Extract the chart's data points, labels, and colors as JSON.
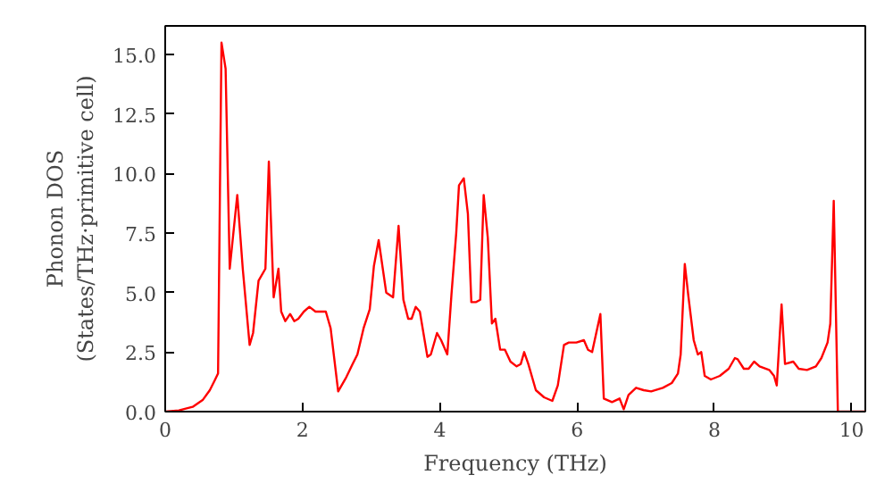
{
  "chart_data": {
    "type": "line",
    "xlabel": "Frequency (THz)",
    "ylabel": "Phonon DOS\n(States/THz·primitive cell)",
    "xlim": [
      0,
      10.2
    ],
    "ylim": [
      0,
      16.2
    ],
    "xticks": [
      0,
      2,
      4,
      6,
      8,
      10
    ],
    "yticks": [
      {
        "value": 0,
        "label": "0.0"
      },
      {
        "value": 2.5,
        "label": "2.5"
      },
      {
        "value": 5,
        "label": "5.0"
      },
      {
        "value": 7.5,
        "label": "7.5"
      },
      {
        "value": 10,
        "label": "10.0"
      },
      {
        "value": 12.5,
        "label": "12.5"
      },
      {
        "value": 15,
        "label": "15.0"
      }
    ],
    "grid": false,
    "line_style": "solid",
    "series": [
      {
        "color": "#ff0000",
        "x": [
          0,
          0.2,
          0.4,
          0.55,
          0.65,
          0.72,
          0.77,
          0.82,
          0.88,
          0.94,
          1.05,
          1.13,
          1.23,
          1.28,
          1.36,
          1.46,
          1.51,
          1.58,
          1.65,
          1.69,
          1.75,
          1.82,
          1.88,
          1.94,
          2.02,
          2.1,
          2.19,
          2.34,
          2.41,
          2.52,
          2.63,
          2.73,
          2.8,
          2.89,
          2.98,
          3.04,
          3.11,
          3.22,
          3.32,
          3.4,
          3.47,
          3.54,
          3.59,
          3.65,
          3.71,
          3.82,
          3.87,
          3.96,
          4.02,
          4.11,
          4.17,
          4.24,
          4.28,
          4.35,
          4.41,
          4.46,
          4.53,
          4.59,
          4.64,
          4.7,
          4.76,
          4.81,
          4.88,
          4.95,
          5.03,
          5.12,
          5.18,
          5.23,
          5.29,
          5.4,
          5.52,
          5.64,
          5.72,
          5.81,
          5.88,
          5.99,
          6.1,
          6.16,
          6.22,
          6.34,
          6.39,
          6.51,
          6.62,
          6.68,
          6.75,
          6.86,
          6.97,
          7.08,
          7.25,
          7.38,
          7.47,
          7.51,
          7.57,
          7.62,
          7.7,
          7.76,
          7.81,
          7.86,
          7.95,
          8.08,
          8.21,
          8.3,
          8.34,
          8.43,
          8.5,
          8.58,
          8.66,
          8.8,
          8.87,
          8.91,
          8.98,
          9.03,
          9.15,
          9.23,
          9.35,
          9.48,
          9.56,
          9.65,
          9.69,
          9.74,
          9.8,
          10.2
        ],
        "values": [
          0,
          0.05,
          0.2,
          0.5,
          0.9,
          1.3,
          1.6,
          15.5,
          14.4,
          6.0,
          9.1,
          6.0,
          2.8,
          3.3,
          5.5,
          6.0,
          10.5,
          4.8,
          6.0,
          4.2,
          3.8,
          4.1,
          3.8,
          3.9,
          4.2,
          4.4,
          4.2,
          4.2,
          3.5,
          0.85,
          1.4,
          2.0,
          2.4,
          3.5,
          4.3,
          6.1,
          7.2,
          5.0,
          4.8,
          7.8,
          4.7,
          3.9,
          3.9,
          4.4,
          4.2,
          2.3,
          2.4,
          3.3,
          3.0,
          2.4,
          4.9,
          7.5,
          9.5,
          9.8,
          8.3,
          4.6,
          4.6,
          4.7,
          9.1,
          7.3,
          3.7,
          3.9,
          2.6,
          2.6,
          2.1,
          1.9,
          2.0,
          2.5,
          2.0,
          0.9,
          0.6,
          0.45,
          1.1,
          2.8,
          2.9,
          2.9,
          3.0,
          2.6,
          2.5,
          4.1,
          0.55,
          0.4,
          0.55,
          0.1,
          0.7,
          1.0,
          0.9,
          0.85,
          1.0,
          1.2,
          1.6,
          2.4,
          6.2,
          4.9,
          3.0,
          2.4,
          2.5,
          1.5,
          1.35,
          1.5,
          1.8,
          2.25,
          2.2,
          1.8,
          1.8,
          2.1,
          1.9,
          1.75,
          1.5,
          1.1,
          4.5,
          2.0,
          2.1,
          1.8,
          1.75,
          1.9,
          2.25,
          2.9,
          3.7,
          8.85,
          0,
          0
        ]
      }
    ]
  }
}
